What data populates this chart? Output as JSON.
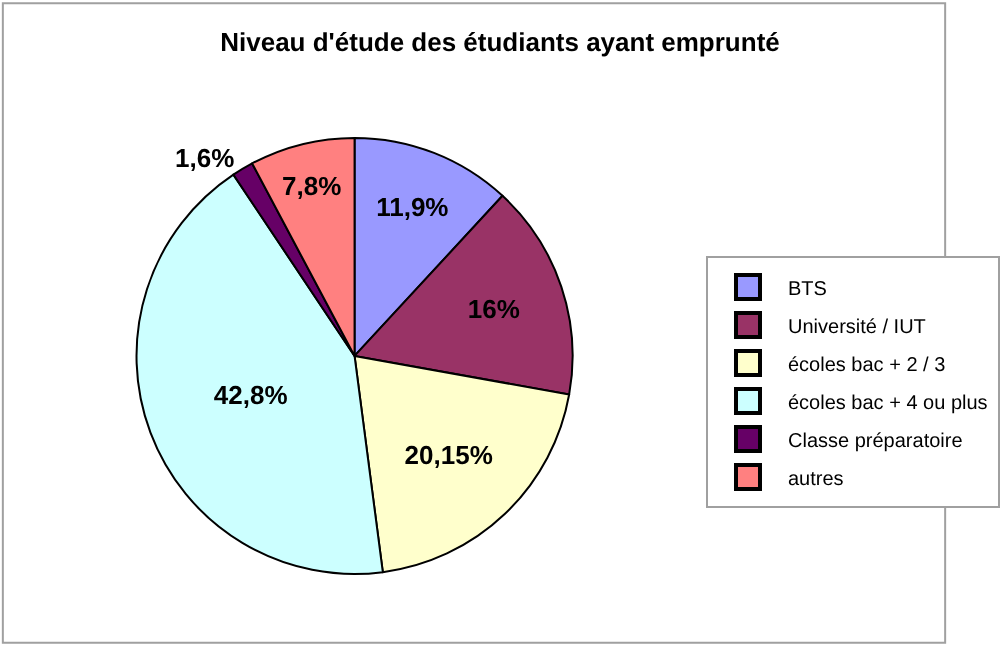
{
  "chart_data": {
    "type": "pie",
    "title": "Niveau d'étude des étudiants ayant emprunté",
    "categories": [
      "BTS",
      "Université / IUT",
      "écoles bac + 2 / 3",
      "écoles bac + 4 ou plus",
      "Classe préparatoire",
      "autres"
    ],
    "values": [
      11.9,
      16,
      20.15,
      42.8,
      1.6,
      7.8
    ],
    "value_labels": [
      "11,9%",
      "16%",
      "20,15%",
      "42,8%",
      "1,6%",
      "7,8%"
    ],
    "colors": [
      "#9999ff",
      "#993366",
      "#ffffcc",
      "#ccffff",
      "#660066",
      "#ff8080"
    ],
    "legend": "right"
  }
}
